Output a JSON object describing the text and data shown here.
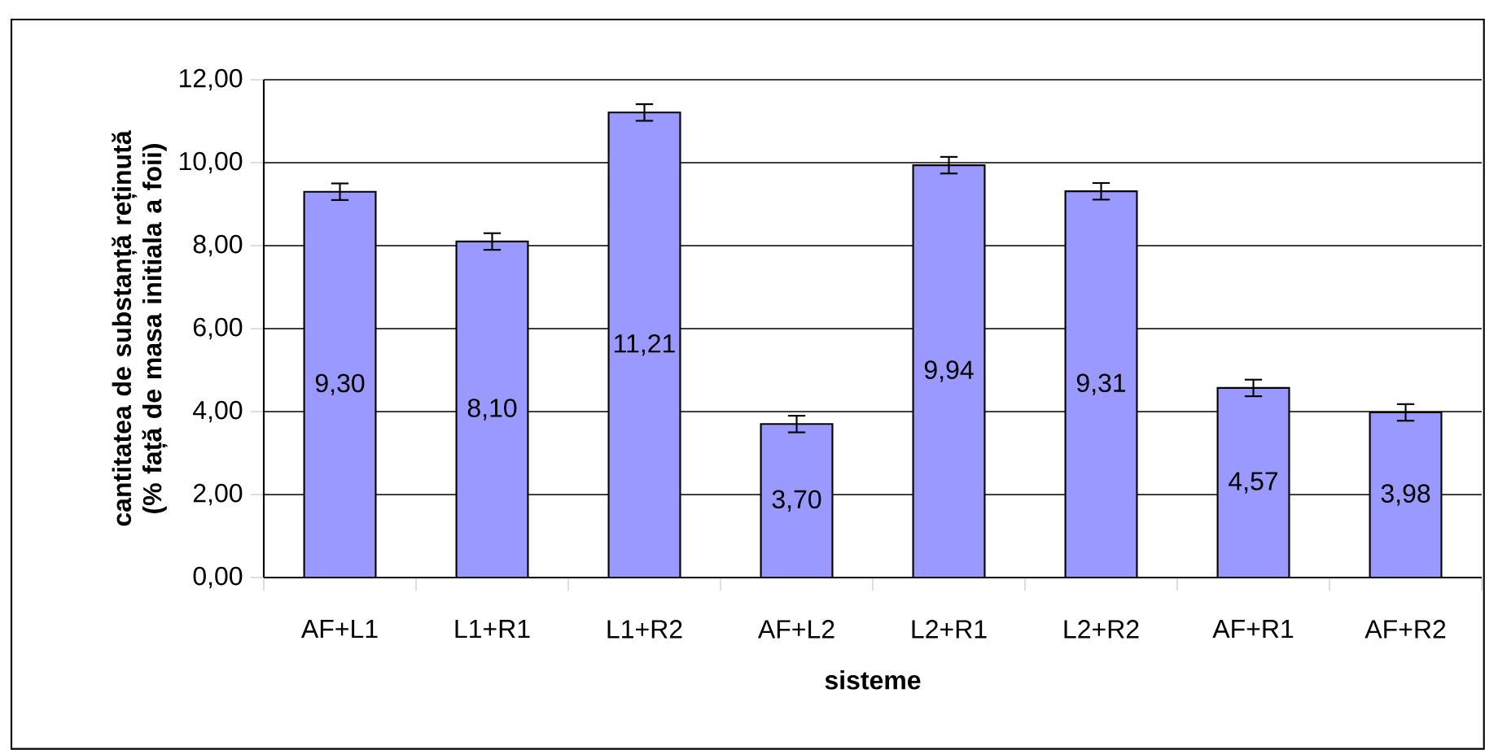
{
  "chart_data": {
    "type": "bar",
    "xlabel": "sisteme",
    "ylabel": "cantitatea de substanță reținută (% față de masa initiala a foii)",
    "categories": [
      "AF+L1",
      "L1+R1",
      "L1+R2",
      "AF+L2",
      "L2+R1",
      "L2+R2",
      "AF+R1",
      "AF+R2"
    ],
    "values": [
      9.3,
      8.1,
      11.21,
      3.7,
      9.94,
      9.31,
      4.57,
      3.98
    ],
    "value_labels": [
      "9,30",
      "8,10",
      "11,21",
      "3,70",
      "9,94",
      "9,31",
      "4,57",
      "3,98"
    ],
    "errors": [
      0.2,
      0.2,
      0.2,
      0.2,
      0.2,
      0.2,
      0.2,
      0.2
    ],
    "color": "#9999ff",
    "ylim": [
      0,
      12
    ],
    "yticks": [
      {
        "value": 0,
        "label": "0,00"
      },
      {
        "value": 2,
        "label": "2,00"
      },
      {
        "value": 4,
        "label": "4,00"
      },
      {
        "value": 6,
        "label": "6,00"
      },
      {
        "value": 8,
        "label": "8,00"
      },
      {
        "value": 10,
        "label": "10,00"
      },
      {
        "value": 12,
        "label": "12,00"
      }
    ],
    "grid": "y"
  }
}
